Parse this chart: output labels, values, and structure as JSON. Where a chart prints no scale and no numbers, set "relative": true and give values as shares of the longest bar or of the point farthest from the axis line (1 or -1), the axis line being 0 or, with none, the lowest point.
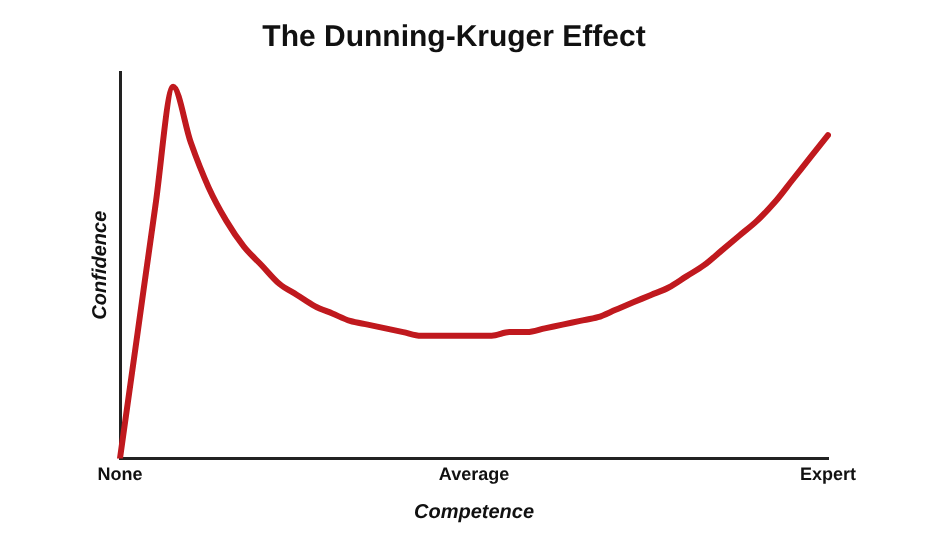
{
  "chart_data": {
    "type": "line",
    "title": "The Dunning-Kruger Effect",
    "xlabel": "Competence",
    "ylabel": "Confidence",
    "relative": true,
    "categories": [
      "None",
      null,
      null,
      null,
      null,
      null,
      null,
      null,
      null,
      null,
      null,
      null,
      null,
      null,
      null,
      null,
      null,
      null,
      null,
      null,
      "Average",
      null,
      null,
      null,
      null,
      null,
      null,
      null,
      null,
      null,
      null,
      null,
      null,
      null,
      null,
      null,
      null,
      null,
      null,
      null,
      "Expert"
    ],
    "series": [
      {
        "color": "#c0191e",
        "values": [
          0,
          0.34,
          0.68,
          1,
          0.85,
          0.73,
          0.64,
          0.57,
          0.52,
          0.47,
          0.44,
          0.41,
          0.39,
          0.37,
          0.36,
          0.35,
          0.34,
          0.33,
          0.33,
          0.33,
          0.33,
          0.33,
          0.34,
          0.34,
          0.35,
          0.36,
          0.37,
          0.38,
          0.4,
          0.42,
          0.44,
          0.46,
          0.49,
          0.52,
          0.56,
          0.6,
          0.64,
          0.69,
          0.75,
          0.81,
          0.87
        ]
      }
    ],
    "grid": false,
    "legend": false,
    "marker": "none",
    "line_style": "solid"
  }
}
